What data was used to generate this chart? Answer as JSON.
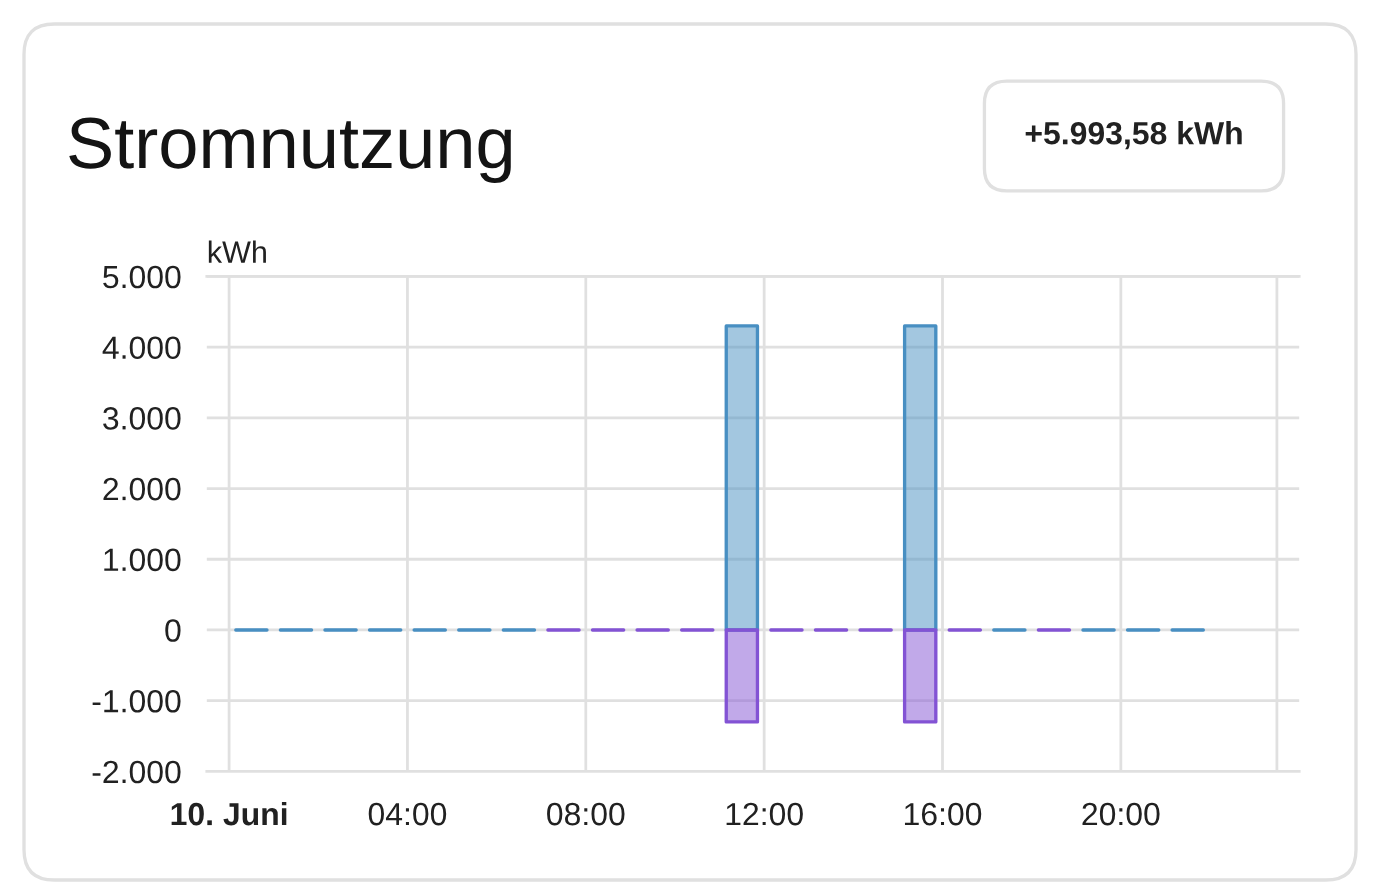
{
  "chart_data": {
    "type": "bar",
    "title": "Stromnutzung",
    "ylabel": "kWh",
    "annotations": [
      "+5.993,58 kWh"
    ],
    "x": [
      0.5,
      1.5,
      2.5,
      3.5,
      4.5,
      5.5,
      6.5,
      7.5,
      8.5,
      9.5,
      10.5,
      11.5,
      12.5,
      13.5,
      14.5,
      15.5,
      16.5,
      17.5,
      18.5,
      19.5,
      20.5,
      21.5
    ],
    "series": [
      {
        "color": "#488fc2",
        "values": [
          0,
          0,
          0,
          0,
          0,
          0,
          0,
          null,
          null,
          null,
          null,
          4300,
          null,
          null,
          null,
          4300,
          null,
          0,
          null,
          0,
          0,
          0
        ]
      },
      {
        "color": "#8353d4",
        "values": [
          null,
          null,
          null,
          null,
          null,
          null,
          null,
          0,
          0,
          0,
          0,
          -1300,
          0,
          0,
          0,
          -1300,
          0,
          null,
          0,
          null,
          null,
          null
        ]
      }
    ],
    "stacked": true,
    "xlim": [
      -0.5,
      24
    ],
    "xticks": [
      {
        "value": 0,
        "label": "10. Juni"
      },
      {
        "value": 4,
        "label": "04:00"
      },
      {
        "value": 8,
        "label": "08:00"
      },
      {
        "value": 12,
        "label": "12:00"
      },
      {
        "value": 16,
        "label": "16:00"
      },
      {
        "value": 20,
        "label": "20:00"
      },
      {
        "value": 23.5,
        "label": null
      }
    ],
    "ylim": [
      -2000,
      5000
    ],
    "yticks": [
      {
        "value": -2000,
        "label": "-2.000"
      },
      {
        "value": -1000,
        "label": "-1.000"
      },
      0,
      {
        "value": 1000,
        "label": "1.000"
      },
      {
        "value": 2000,
        "label": "2.000"
      },
      {
        "value": 3000,
        "label": "3.000"
      },
      {
        "value": 4000,
        "label": "4.000"
      },
      {
        "value": 5000,
        "label": "5.000"
      }
    ],
    "grid": true
  }
}
